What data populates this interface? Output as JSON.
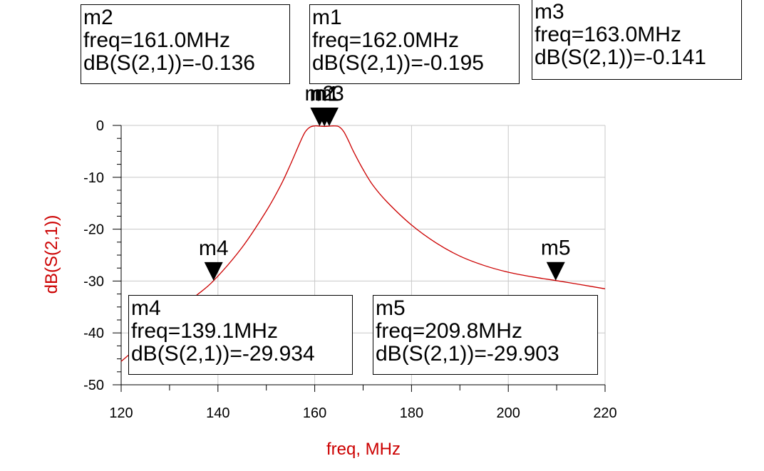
{
  "chart_data": {
    "type": "line",
    "xlabel": "freq, MHz",
    "ylabel": "dB(S(2,1))",
    "xlim": [
      120,
      220
    ],
    "ylim": [
      -50,
      0
    ],
    "x_ticks": [
      120,
      140,
      160,
      180,
      200,
      220
    ],
    "y_ticks": [
      0,
      -10,
      -20,
      -30,
      -40,
      -50
    ],
    "x_tick_labels": [
      "120",
      "140",
      "160",
      "180",
      "200",
      "220"
    ],
    "y_tick_labels": [
      "0",
      "-10",
      "-20",
      "-30",
      "-40",
      "-50"
    ],
    "grid": true,
    "series": [
      {
        "color": "#cc0000",
        "x": [
          120,
          125,
          130,
          135,
          139.1,
          145,
          150,
          153,
          155,
          157,
          158,
          159,
          160,
          161,
          162,
          163,
          164,
          165,
          166,
          167,
          168,
          170,
          172,
          175,
          180,
          185,
          190,
          195,
          200,
          205,
          209.8,
          215,
          220
        ],
        "y": [
          -45.5,
          -41.5,
          -37.3,
          -33.2,
          -29.934,
          -23.5,
          -16.5,
          -11.5,
          -7.5,
          -3.2,
          -1.3,
          -0.35,
          -0.1,
          -0.136,
          -0.195,
          -0.141,
          -0.1,
          -0.25,
          -1.2,
          -3.0,
          -5.0,
          -8.5,
          -11.5,
          -14.8,
          -19.2,
          -22.6,
          -25.2,
          -27.0,
          -28.3,
          -29.2,
          -29.903,
          -30.7,
          -31.5
        ]
      }
    ],
    "markers": [
      {
        "name": "m1",
        "freq_label": "freq=162.0MHz",
        "value_label": "dB(S(2,1))=-0.195",
        "x": 162.0,
        "y": -0.195
      },
      {
        "name": "m2",
        "freq_label": "freq=161.0MHz",
        "value_label": "dB(S(2,1))=-0.136",
        "x": 161.0,
        "y": -0.136
      },
      {
        "name": "m3",
        "freq_label": "freq=163.0MHz",
        "value_label": "dB(S(2,1))=-0.141",
        "x": 163.0,
        "y": -0.141
      },
      {
        "name": "m4",
        "freq_label": "freq=139.1MHz",
        "value_label": "dB(S(2,1))=-29.934",
        "x": 139.1,
        "y": -29.934
      },
      {
        "name": "m5",
        "freq_label": "freq=209.8MHz",
        "value_label": "dB(S(2,1))=-29.903",
        "x": 209.8,
        "y": -29.903
      }
    ]
  }
}
